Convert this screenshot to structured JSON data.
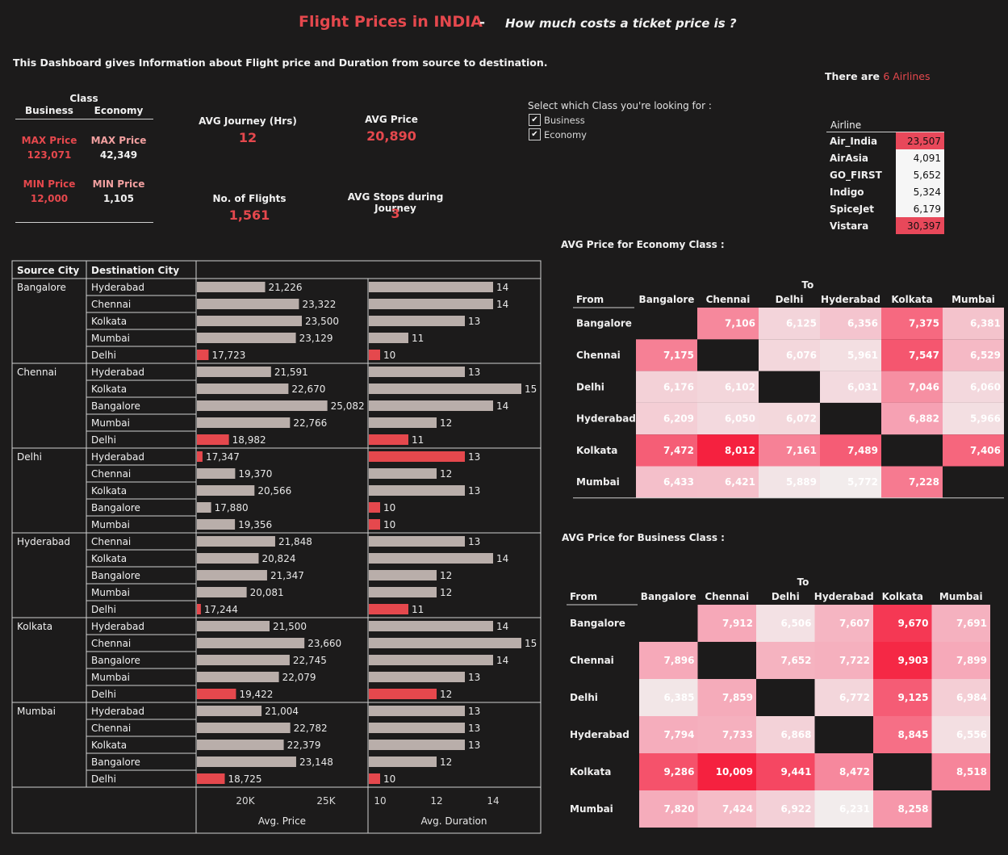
{
  "header": {
    "title": "Flight Prices in INDIA",
    "separator": "-",
    "subtitle": "How much costs a ticket price is ?",
    "description": "This Dashboard gives Information about Flight price and Duration from source to destination."
  },
  "class_summary": {
    "title": "Class",
    "business_label": "Business",
    "economy_label": "Economy",
    "max_label": "MAX Price",
    "min_label": "MIN Price",
    "business_max": "123,071",
    "economy_max": "42,349",
    "business_min": "12,000",
    "economy_min": "1,105"
  },
  "kpis": {
    "avg_journey_label": "AVG Journey (Hrs)",
    "avg_journey_value": "12",
    "avg_price_label": "AVG Price",
    "avg_price_value": "20,890",
    "flights_label": "No. of Flights",
    "flights_value": "1,561",
    "stops_label": "AVG Stops during Journey",
    "stops_value": "3"
  },
  "filter": {
    "label": "Select which Class you're looking for :",
    "options": [
      "Business",
      "Economy"
    ]
  },
  "airlines": {
    "count_prefix": "There are ",
    "count_text": "6 Airlines",
    "header": "Airline",
    "rows": [
      {
        "name": "Air_India",
        "value": "23,507",
        "color": "#e8485a"
      },
      {
        "name": "AirAsia",
        "value": "4,091",
        "color": "#f6f6f6"
      },
      {
        "name": "GO_FIRST",
        "value": "5,652",
        "color": "#f6f6f6"
      },
      {
        "name": "Indigo",
        "value": "5,324",
        "color": "#f6f6f6"
      },
      {
        "name": "SpiceJet",
        "value": "6,179",
        "color": "#f6f6f6"
      },
      {
        "name": "Vistara",
        "value": "30,397",
        "color": "#e8485a"
      }
    ]
  },
  "bar_table": {
    "col_source": "Source City",
    "col_dest": "Destination City",
    "price_axis_label": "Avg. Price",
    "duration_axis_label": "Avg. Duration",
    "price_ticks": [
      "20K",
      "25K"
    ],
    "duration_ticks": [
      "10",
      "12",
      "14"
    ]
  },
  "heatmaps": {
    "economy_title": "AVG Price for Economy Class :",
    "business_title": "AVG Price for Business Class :",
    "to_label": "To",
    "from_label": "From",
    "cities": [
      "Bangalore",
      "Chennai",
      "Delhi",
      "Hyderabad",
      "Kolkata",
      "Mumbai"
    ]
  },
  "chart_data": [
    {
      "type": "bar",
      "title": "",
      "xlabel": "Avg. Price",
      "x_ticks": [
        "20K",
        "25K"
      ],
      "groups": [
        {
          "source": "Bangalore",
          "rows": [
            {
              "dest": "Hyderabad",
              "price": 21226,
              "price_label": "21,226",
              "duration": 14
            },
            {
              "dest": "Chennai",
              "price": 23322,
              "price_label": "23,322",
              "duration": 14
            },
            {
              "dest": "Kolkata",
              "price": 23500,
              "price_label": "23,500",
              "duration": 13
            },
            {
              "dest": "Mumbai",
              "price": 23129,
              "price_label": "23,129",
              "duration": 11
            },
            {
              "dest": "Delhi",
              "price": 17723,
              "price_label": "17,723",
              "duration": 10
            }
          ]
        },
        {
          "source": "Chennai",
          "rows": [
            {
              "dest": "Hyderabad",
              "price": 21591,
              "price_label": "21,591",
              "duration": 13
            },
            {
              "dest": "Kolkata",
              "price": 22670,
              "price_label": "22,670",
              "duration": 15
            },
            {
              "dest": "Bangalore",
              "price": 25082,
              "price_label": "25,082",
              "duration": 14
            },
            {
              "dest": "Mumbai",
              "price": 22766,
              "price_label": "22,766",
              "duration": 12
            },
            {
              "dest": "Delhi",
              "price": 18982,
              "price_label": "18,982",
              "duration": 11
            }
          ]
        },
        {
          "source": "Delhi",
          "rows": [
            {
              "dest": "Hyderabad",
              "price": 17347,
              "price_label": "17,347",
              "duration": 13
            },
            {
              "dest": "Chennai",
              "price": 19370,
              "price_label": "19,370",
              "duration": 12
            },
            {
              "dest": "Kolkata",
              "price": 20566,
              "price_label": "20,566",
              "duration": 13
            },
            {
              "dest": "Bangalore",
              "price": 17880,
              "price_label": "17,880",
              "duration": 10
            },
            {
              "dest": "Mumbai",
              "price": 19356,
              "price_label": "19,356",
              "duration": 10
            }
          ]
        },
        {
          "source": "Hyderabad",
          "rows": [
            {
              "dest": "Chennai",
              "price": 21848,
              "price_label": "21,848",
              "duration": 13
            },
            {
              "dest": "Kolkata",
              "price": 20824,
              "price_label": "20,824",
              "duration": 14
            },
            {
              "dest": "Bangalore",
              "price": 21347,
              "price_label": "21,347",
              "duration": 12
            },
            {
              "dest": "Mumbai",
              "price": 20081,
              "price_label": "20,081",
              "duration": 12
            },
            {
              "dest": "Delhi",
              "price": 17244,
              "price_label": "17,244",
              "duration": 11
            }
          ]
        },
        {
          "source": "Kolkata",
          "rows": [
            {
              "dest": "Hyderabad",
              "price": 21500,
              "price_label": "21,500",
              "duration": 14
            },
            {
              "dest": "Chennai",
              "price": 23660,
              "price_label": "23,660",
              "duration": 15
            },
            {
              "dest": "Bangalore",
              "price": 22745,
              "price_label": "22,745",
              "duration": 14
            },
            {
              "dest": "Mumbai",
              "price": 22079,
              "price_label": "22,079",
              "duration": 13
            },
            {
              "dest": "Delhi",
              "price": 19422,
              "price_label": "19,422",
              "duration": 12
            }
          ]
        },
        {
          "source": "Mumbai",
          "rows": [
            {
              "dest": "Hyderabad",
              "price": 21004,
              "price_label": "21,004",
              "duration": 13
            },
            {
              "dest": "Chennai",
              "price": 22782,
              "price_label": "22,782",
              "duration": 13
            },
            {
              "dest": "Kolkata",
              "price": 22379,
              "price_label": "22,379",
              "duration": 13
            },
            {
              "dest": "Bangalore",
              "price": 23148,
              "price_label": "23,148",
              "duration": 12
            },
            {
              "dest": "Delhi",
              "price": 18725,
              "price_label": "18,725",
              "duration": 10
            }
          ]
        }
      ],
      "x_axis_range": [
        17000,
        27500
      ],
      "highlight_color": "#e5484d",
      "base_color": "#b9aeaa"
    },
    {
      "type": "bar",
      "title": "",
      "xlabel": "Avg. Duration",
      "x_ticks": [
        "10",
        "12",
        "14"
      ],
      "x_axis_range": [
        9.6,
        15.6
      ],
      "values_from": "duration (see chart_data[0].groups)"
    },
    {
      "type": "heatmap",
      "title": "AVG Price for Economy Class :",
      "xlabel": "To",
      "ylabel": "From",
      "x": [
        "Bangalore",
        "Chennai",
        "Delhi",
        "Hyderabad",
        "Kolkata",
        "Mumbai"
      ],
      "y": [
        "Bangalore",
        "Chennai",
        "Delhi",
        "Hyderabad",
        "Kolkata",
        "Mumbai"
      ],
      "values": [
        [
          null,
          7106,
          6125,
          6356,
          7375,
          6381
        ],
        [
          7175,
          null,
          6076,
          5961,
          7547,
          6529
        ],
        [
          6176,
          6102,
          null,
          6031,
          7046,
          6060
        ],
        [
          6209,
          6050,
          6072,
          null,
          6882,
          5966
        ],
        [
          7472,
          8012,
          7161,
          7489,
          null,
          7406
        ],
        [
          6433,
          6421,
          5889,
          5772,
          7228,
          null
        ]
      ],
      "labels": [
        [
          "",
          "7,106",
          "6,125",
          "6,356",
          "7,375",
          "6,381"
        ],
        [
          "7,175",
          "",
          "6,076",
          "5,961",
          "7,547",
          "6,529"
        ],
        [
          "6,176",
          "6,102",
          "",
          "6,031",
          "7,046",
          "6,060"
        ],
        [
          "6,209",
          "6,050",
          "6,072",
          "",
          "6,882",
          "5,966"
        ],
        [
          "7,472",
          "8,012",
          "7,161",
          "7,489",
          "",
          "7,406"
        ],
        [
          "6,433",
          "6,421",
          "5,889",
          "5,772",
          "7,228",
          ""
        ]
      ],
      "color_range": [
        5772,
        8012
      ]
    },
    {
      "type": "heatmap",
      "title": "AVG Price for Business Class :",
      "xlabel": "To",
      "ylabel": "From",
      "x": [
        "Bangalore",
        "Chennai",
        "Delhi",
        "Hyderabad",
        "Kolkata",
        "Mumbai"
      ],
      "y": [
        "Bangalore",
        "Chennai",
        "Delhi",
        "Hyderabad",
        "Kolkata",
        "Mumbai"
      ],
      "values": [
        [
          null,
          7912,
          6506,
          7607,
          9670,
          7691
        ],
        [
          7896,
          null,
          7652,
          7722,
          9903,
          7899
        ],
        [
          6385,
          7859,
          null,
          6772,
          9125,
          6984
        ],
        [
          7794,
          7733,
          6868,
          null,
          8845,
          6556
        ],
        [
          9286,
          10009,
          9441,
          8472,
          null,
          8518
        ],
        [
          7820,
          7424,
          6922,
          6231,
          8258,
          null
        ]
      ],
      "labels": [
        [
          "",
          "7,912",
          "6,506",
          "7,607",
          "9,670",
          "7,691"
        ],
        [
          "7,896",
          "",
          "7,652",
          "7,722",
          "9,903",
          "7,899"
        ],
        [
          "6,385",
          "7,859",
          "",
          "6,772",
          "9,125",
          "6,984"
        ],
        [
          "7,794",
          "7,733",
          "6,868",
          "",
          "8,845",
          "6,556"
        ],
        [
          "9,286",
          "10,009",
          "9,441",
          "8,472",
          "",
          "8,518"
        ],
        [
          "7,820",
          "7,424",
          "6,922",
          "6,231",
          "8,258",
          ""
        ]
      ],
      "color_range": [
        6231,
        10009
      ]
    }
  ]
}
